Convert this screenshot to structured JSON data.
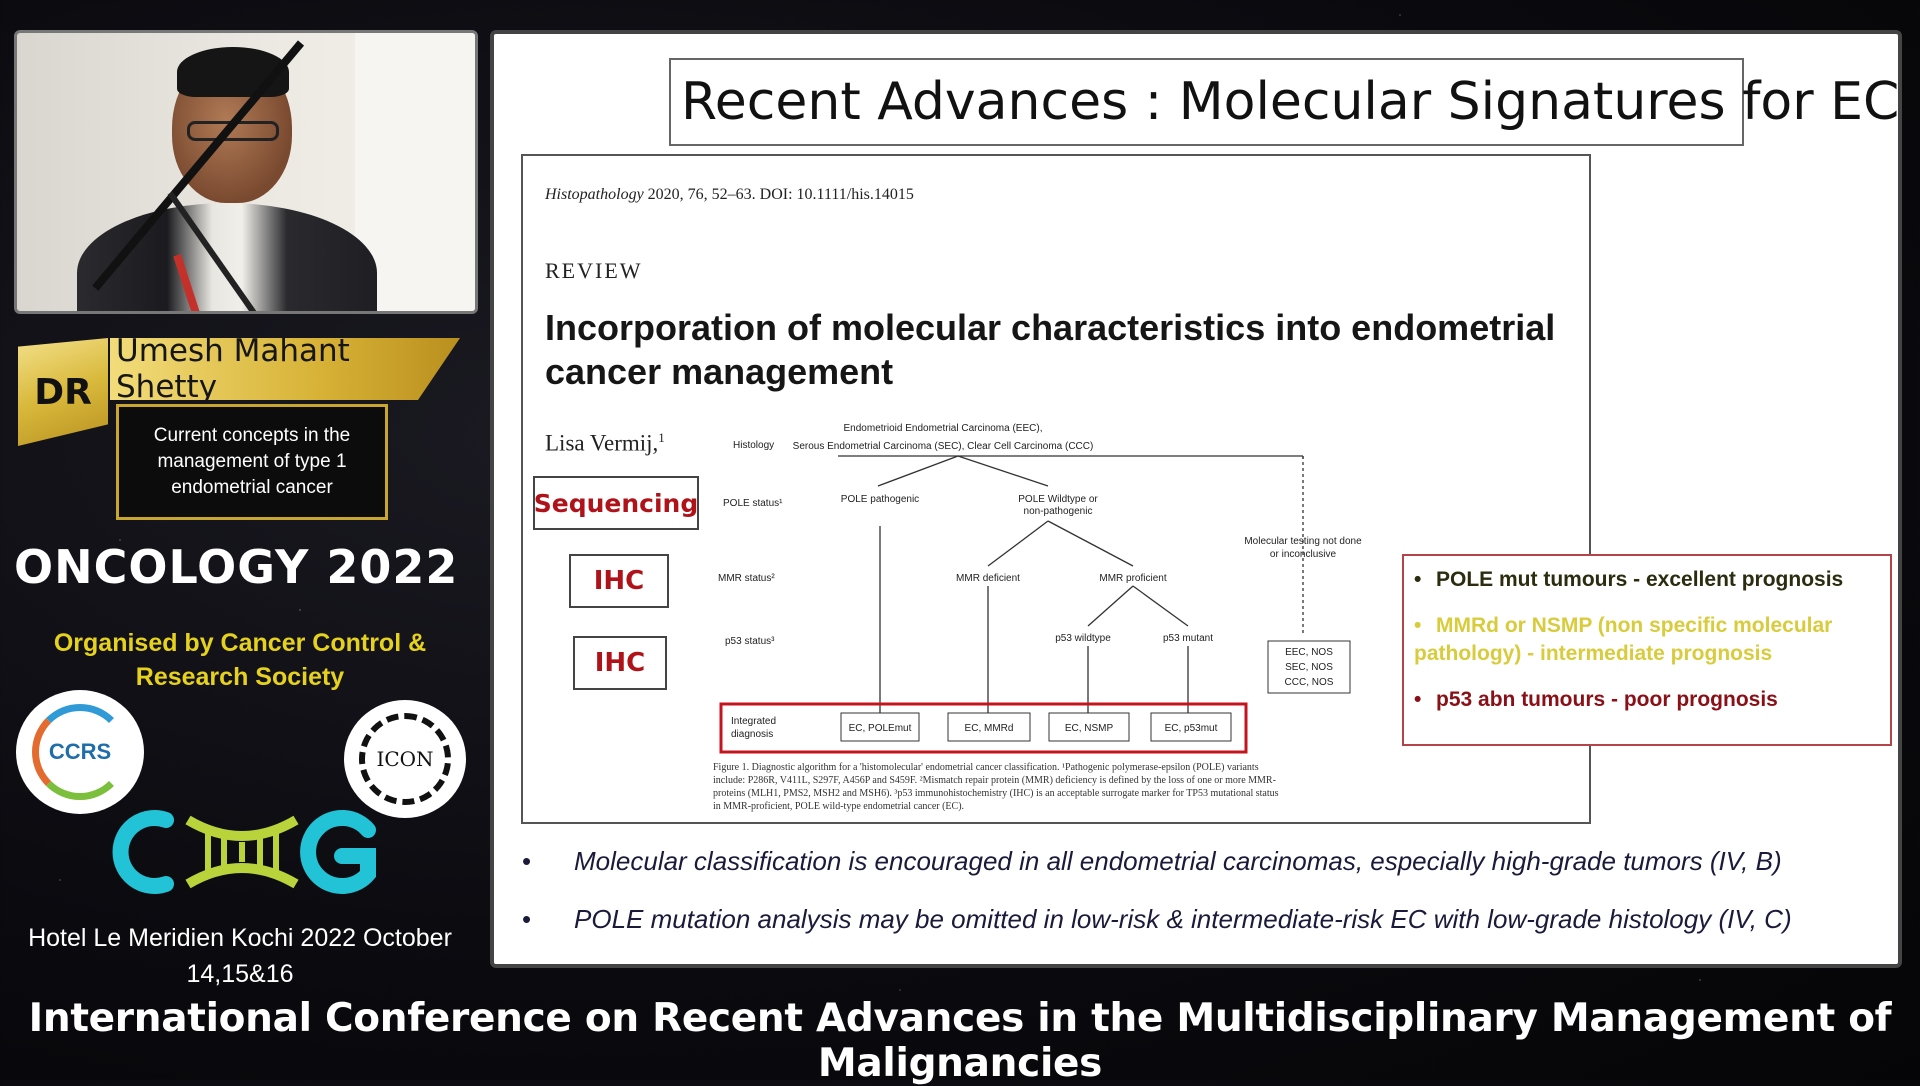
{
  "speaker": {
    "badge": "DR",
    "name": "Umesh Mahant Shetty",
    "topic_lines": [
      "Current concepts in the",
      "management of type 1",
      "endometrial cancer"
    ]
  },
  "event": {
    "name": "ONCOLOGY 2022",
    "organised_line1": "Organised by   Cancer Control &",
    "organised_line2": "Research Society",
    "logo_ccrs": "CCRS",
    "logo_icon": "ICON",
    "venue_line1": "Hotel Le Meridien  Kochi  2022 October",
    "venue_line2": "14,15&16",
    "conference_title": "International Conference on Recent Advances in the Multidisciplinary Management of Malignancies"
  },
  "slide": {
    "title": "Recent Advances : Molecular Signatures  for EC",
    "paper": {
      "journal": "Histopathology",
      "citation_rest": " 2020, 76, 52–63. DOI: 10.1111/his.14015",
      "section": "REVIEW",
      "title_line1": "Incorporation of molecular characteristics into endometrial",
      "title_line2": "cancer management",
      "author": "Lisa Vermij,",
      "author_sup": "1"
    },
    "tags": {
      "sequencing": "Sequencing",
      "ihc1": "IHC",
      "ihc2": "IHC"
    },
    "flowchart": {
      "histology_label": "Histology",
      "histology_line1": "Endometrioid Endometrial Carcinoma (EEC),",
      "histology_line2": "Serous Endometrial Carcinoma (SEC), Clear Cell Carcinoma (CCC)",
      "pole_status": "POLE status¹",
      "pole_pathogenic": "POLE pathogenic",
      "pole_wild_line1": "POLE Wildtype or",
      "pole_wild_line2": "non-pathogenic",
      "molecular_not_done_line1": "Molecular testing not done",
      "molecular_not_done_line2": "or inconclusive",
      "mmr_status": "MMR status²",
      "mmr_deficient": "MMR deficient",
      "mmr_proficient": "MMR proficient",
      "p53_status": "p53 status³",
      "p53_wildtype": "p53 wildtype",
      "p53_mutant": "p53 mutant",
      "nos_line1": "EEC, NOS",
      "nos_line2": "SEC, NOS",
      "nos_line3": "CCC, NOS",
      "integrated_line1": "Integrated",
      "integrated_line2": "diagnosis",
      "dx_pole": "EC, POLEmut",
      "dx_mmrd": "EC, MMRd",
      "dx_nsmp": "EC, NSMP",
      "dx_p53": "EC, p53mut"
    },
    "caption_lines": [
      "Figure 1. Diagnostic algorithm for a 'histomolecular' endometrial cancer classification. ¹Pathogenic polymerase-epsilon (POLE) variants",
      "include: P286R, V411L, S297F, A456P and S459F. ²Mismatch repair protein (MMR) deficiency is defined by the loss of one or more MMR-",
      "proteins (MLH1, PMS2, MSH2 and MSH6). ³p53 immunohistochemistry (IHC) is an acceptable surrogate marker for TP53 mutational status",
      "in MMR-proficient, POLE wild-type endometrial cancer (EC)."
    ],
    "prognosis": [
      {
        "text": "POLE mut tumours - excellent prognosis",
        "color": "#2c2c10"
      },
      {
        "text": "MMRd or NSMP (non specific molecular pathology) - intermediate prognosis",
        "color": "#d8cc3c"
      },
      {
        "text": "p53 abn tumours - poor prognosis",
        "color": "#8a1018"
      }
    ],
    "bullets": [
      "Molecular classification is encouraged in all endometrial carcinomas, especially high-grade tumors (IV, B)",
      "POLE mutation analysis may be omitted in low-risk & intermediate-risk EC with low-grade histology (IV, C)"
    ]
  },
  "colors": {
    "gold": "#d7b236",
    "organiser_yellow": "#e6d21d",
    "tag_red": "#b0121a",
    "cog_cyan": "#22c3d6",
    "cog_green": "#b8d43a"
  }
}
